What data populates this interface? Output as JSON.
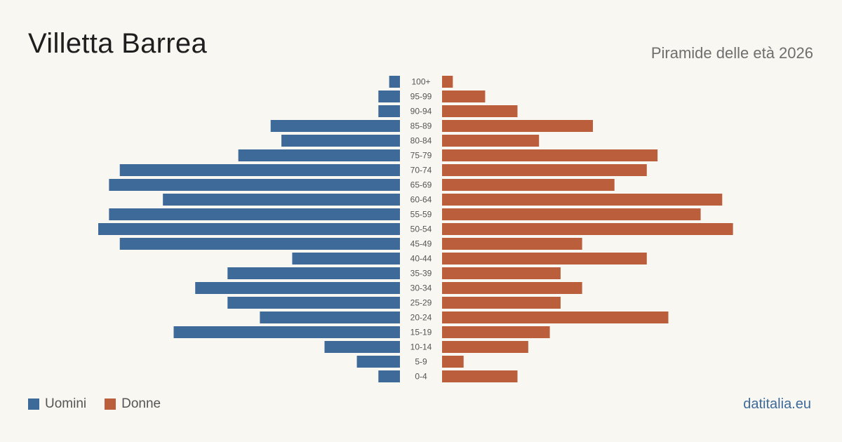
{
  "header": {
    "title": "Villetta Barrea",
    "subtitle": "Piramide delle età 2026"
  },
  "legend": {
    "men_label": "Uomini",
    "women_label": "Donne"
  },
  "footer": {
    "source": "datitalia.eu"
  },
  "colors": {
    "men": "#3d6a99",
    "women": "#bb5e3c",
    "age_label": "#555555"
  },
  "chart_data": {
    "type": "bar",
    "orientation": "horizontal-pyramid",
    "categories": [
      "100+",
      "95-99",
      "90-94",
      "85-89",
      "80-84",
      "75-79",
      "70-74",
      "65-69",
      "60-64",
      "55-59",
      "50-54",
      "45-49",
      "40-44",
      "35-39",
      "30-34",
      "25-29",
      "20-24",
      "15-19",
      "10-14",
      "5-9",
      "0-4"
    ],
    "series": [
      {
        "name": "Uomini",
        "values": [
          1,
          2,
          2,
          12,
          11,
          15,
          26,
          27,
          22,
          27,
          28,
          26,
          10,
          16,
          19,
          16,
          13,
          21,
          7,
          4,
          2
        ]
      },
      {
        "name": "Donne",
        "values": [
          1,
          4,
          7,
          14,
          9,
          20,
          19,
          16,
          26,
          24,
          27,
          13,
          19,
          11,
          13,
          11,
          21,
          10,
          8,
          2,
          7
        ]
      }
    ],
    "xlim": [
      0,
      28
    ],
    "grid": false,
    "legend_position": "bottom-left"
  }
}
